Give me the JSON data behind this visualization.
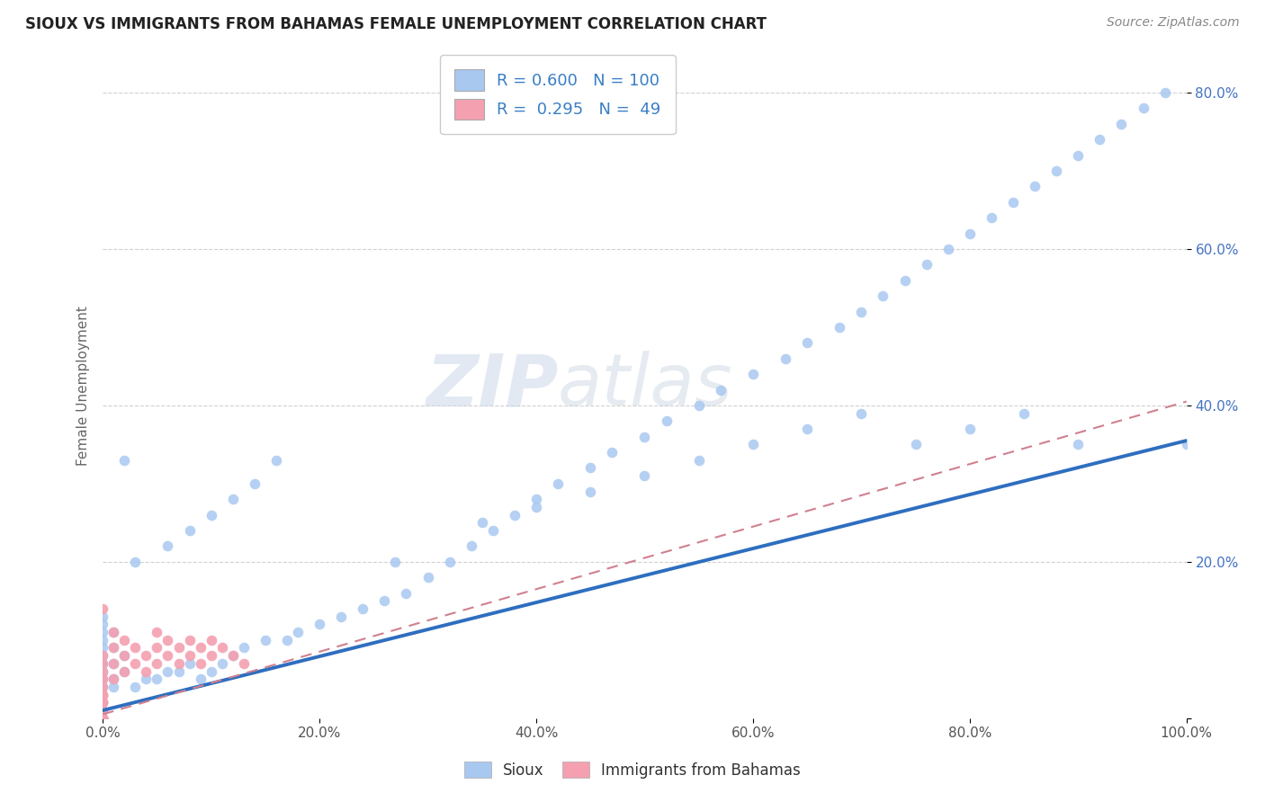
{
  "title": "SIOUX VS IMMIGRANTS FROM BAHAMAS FEMALE UNEMPLOYMENT CORRELATION CHART",
  "source": "Source: ZipAtlas.com",
  "ylabel": "Female Unemployment",
  "xlim": [
    0.0,
    1.0
  ],
  "ylim": [
    0.0,
    0.85
  ],
  "xticks": [
    0.0,
    0.2,
    0.4,
    0.6,
    0.8,
    1.0
  ],
  "xtick_labels": [
    "0.0%",
    "20.0%",
    "40.0%",
    "60.0%",
    "80.0%",
    "100.0%"
  ],
  "yticks": [
    0.0,
    0.2,
    0.4,
    0.6,
    0.8
  ],
  "ytick_labels": [
    "",
    "20.0%",
    "40.0%",
    "60.0%",
    "80.0%"
  ],
  "sioux_color": "#A8C8F0",
  "bahamas_color": "#F4A0B0",
  "line_sioux_color": "#2E6EBF",
  "line_bahamas_color": "#D08090",
  "legend_R_sioux": "0.600",
  "legend_N_sioux": "100",
  "legend_R_bahamas": "0.295",
  "legend_N_bahamas": "49",
  "watermark_zip": "ZIP",
  "watermark_atlas": "atlas",
  "sioux_line_x0": 0.0,
  "sioux_line_x1": 1.0,
  "sioux_line_y0": 0.01,
  "sioux_line_y1": 0.355,
  "bahamas_line_x0": 0.0,
  "bahamas_line_x1": 1.0,
  "bahamas_line_y0": 0.005,
  "bahamas_line_y1": 0.405,
  "sioux_x": [
    0.0,
    0.0,
    0.0,
    0.0,
    0.0,
    0.0,
    0.0,
    0.0,
    0.0,
    0.0,
    0.0,
    0.0,
    0.0,
    0.0,
    0.0,
    0.0,
    0.0,
    0.0,
    0.0,
    0.0,
    0.01,
    0.01,
    0.01,
    0.01,
    0.01,
    0.02,
    0.02,
    0.02,
    0.03,
    0.04,
    0.05,
    0.06,
    0.07,
    0.08,
    0.09,
    0.1,
    0.11,
    0.12,
    0.13,
    0.15,
    0.16,
    0.17,
    0.18,
    0.2,
    0.22,
    0.24,
    0.26,
    0.27,
    0.28,
    0.3,
    0.32,
    0.34,
    0.36,
    0.38,
    0.4,
    0.42,
    0.45,
    0.47,
    0.5,
    0.52,
    0.55,
    0.57,
    0.6,
    0.63,
    0.65,
    0.68,
    0.7,
    0.72,
    0.74,
    0.76,
    0.78,
    0.8,
    0.82,
    0.84,
    0.86,
    0.88,
    0.9,
    0.92,
    0.94,
    0.96,
    0.98,
    1.0,
    0.35,
    0.4,
    0.45,
    0.5,
    0.55,
    0.6,
    0.65,
    0.7,
    0.75,
    0.8,
    0.85,
    0.9,
    0.03,
    0.06,
    0.08,
    0.1,
    0.12,
    0.14
  ],
  "sioux_y": [
    0.0,
    0.0,
    0.0,
    0.0,
    0.0,
    0.01,
    0.01,
    0.02,
    0.02,
    0.03,
    0.04,
    0.05,
    0.06,
    0.07,
    0.08,
    0.09,
    0.1,
    0.11,
    0.12,
    0.13,
    0.04,
    0.05,
    0.07,
    0.09,
    0.11,
    0.06,
    0.08,
    0.33,
    0.04,
    0.05,
    0.05,
    0.06,
    0.06,
    0.07,
    0.05,
    0.06,
    0.07,
    0.08,
    0.09,
    0.1,
    0.33,
    0.1,
    0.11,
    0.12,
    0.13,
    0.14,
    0.15,
    0.2,
    0.16,
    0.18,
    0.2,
    0.22,
    0.24,
    0.26,
    0.28,
    0.3,
    0.32,
    0.34,
    0.36,
    0.38,
    0.4,
    0.42,
    0.44,
    0.46,
    0.48,
    0.5,
    0.52,
    0.54,
    0.56,
    0.58,
    0.6,
    0.62,
    0.64,
    0.66,
    0.68,
    0.7,
    0.72,
    0.74,
    0.76,
    0.78,
    0.8,
    0.35,
    0.25,
    0.27,
    0.29,
    0.31,
    0.33,
    0.35,
    0.37,
    0.39,
    0.35,
    0.37,
    0.39,
    0.35,
    0.2,
    0.22,
    0.24,
    0.26,
    0.28,
    0.3
  ],
  "bahamas_x": [
    0.0,
    0.0,
    0.0,
    0.0,
    0.0,
    0.0,
    0.0,
    0.0,
    0.0,
    0.0,
    0.0,
    0.0,
    0.0,
    0.0,
    0.0,
    0.0,
    0.0,
    0.0,
    0.0,
    0.0,
    0.0,
    0.0,
    0.01,
    0.01,
    0.01,
    0.01,
    0.02,
    0.02,
    0.02,
    0.03,
    0.03,
    0.04,
    0.04,
    0.05,
    0.05,
    0.05,
    0.06,
    0.06,
    0.07,
    0.07,
    0.08,
    0.08,
    0.09,
    0.09,
    0.1,
    0.1,
    0.11,
    0.12,
    0.13
  ],
  "bahamas_y": [
    0.0,
    0.0,
    0.0,
    0.0,
    0.0,
    0.0,
    0.0,
    0.0,
    0.0,
    0.0,
    0.01,
    0.01,
    0.02,
    0.02,
    0.03,
    0.03,
    0.04,
    0.05,
    0.06,
    0.07,
    0.08,
    0.14,
    0.05,
    0.07,
    0.09,
    0.11,
    0.06,
    0.08,
    0.1,
    0.07,
    0.09,
    0.06,
    0.08,
    0.07,
    0.09,
    0.11,
    0.08,
    0.1,
    0.07,
    0.09,
    0.08,
    0.1,
    0.07,
    0.09,
    0.08,
    0.1,
    0.09,
    0.08,
    0.07
  ]
}
